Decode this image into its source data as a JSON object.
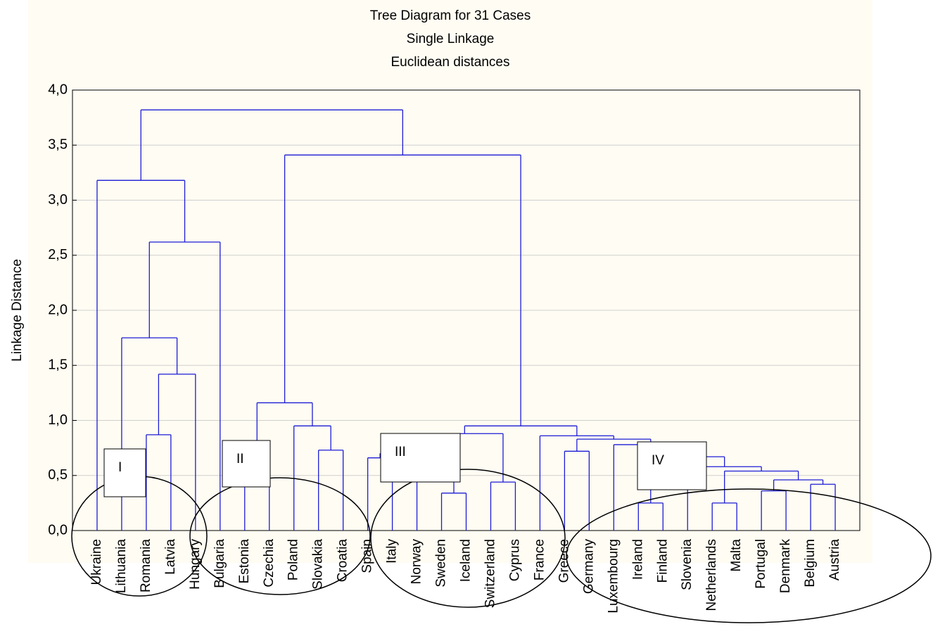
{
  "chart_data": {
    "type": "dendrogram",
    "title": "Tree Diagram for 31 Cases",
    "subtitle": [
      "Single Linkage",
      "Euclidean distances"
    ],
    "y_label": "Linkage Distance",
    "ylim": [
      0,
      4
    ],
    "yticks": [
      {
        "value": 0,
        "label": "0,0"
      },
      {
        "value": 0.5,
        "label": "0,5"
      },
      {
        "value": 1,
        "label": "1,0"
      },
      {
        "value": 1.5,
        "label": "1,5"
      },
      {
        "value": 2,
        "label": "2,0"
      },
      {
        "value": 2.5,
        "label": "2,5"
      },
      {
        "value": 3,
        "label": "3,0"
      },
      {
        "value": 3.5,
        "label": "3,5"
      },
      {
        "value": 4,
        "label": "4,0"
      }
    ],
    "grid": true,
    "color": "#1c1cd6",
    "tree": {
      "height": 3.82,
      "children": [
        {
          "height": 3.18,
          "children": [
            "Ukraine",
            {
              "height": 2.62,
              "children": [
                {
                  "height": 1.75,
                  "children": [
                    "Lithuania",
                    {
                      "height": 1.42,
                      "children": [
                        {
                          "height": 0.87,
                          "children": [
                            "Romania",
                            "Latvia"
                          ]
                        },
                        "Hungary"
                      ]
                    }
                  ]
                },
                "Bulgaria"
              ]
            }
          ]
        },
        {
          "height": 3.41,
          "children": [
            {
              "height": 1.16,
              "children": [
                {
                  "height": 0.81,
                  "children": [
                    "Estonia",
                    "Czechia"
                  ]
                },
                {
                  "height": 0.95,
                  "children": [
                    "Poland",
                    {
                      "height": 0.73,
                      "children": [
                        "Slovakia",
                        "Croatia"
                      ]
                    }
                  ]
                }
              ]
            },
            {
              "height": 0.95,
              "children": [
                {
                  "height": 0.88,
                  "children": [
                    {
                      "height": 0.76,
                      "children": [
                        {
                          "height": 0.7,
                          "children": [
                            {
                              "height": 0.66,
                              "children": [
                                "Spain",
                                "Italy"
                              ]
                            },
                            "Norway"
                          ]
                        },
                        {
                          "height": 0.34,
                          "children": [
                            "Sweden",
                            "Iceland"
                          ]
                        }
                      ]
                    },
                    {
                      "height": 0.44,
                      "children": [
                        "Switzerland",
                        "Cyprus"
                      ]
                    }
                  ]
                },
                {
                  "height": 0.86,
                  "children": [
                    "France",
                    {
                      "height": 0.83,
                      "children": [
                        {
                          "height": 0.72,
                          "children": [
                            "Greece",
                            "Germany"
                          ]
                        },
                        {
                          "height": 0.78,
                          "children": [
                            "Luxembourg",
                            {
                              "height": 0.67,
                              "children": [
                                {
                                  "height": 0.25,
                                  "children": [
                                    "Ireland",
                                    "Finland"
                                  ]
                                },
                                {
                                  "height": 0.58,
                                  "children": [
                                    "Slovenia",
                                    {
                                      "height": 0.54,
                                      "children": [
                                        {
                                          "height": 0.25,
                                          "children": [
                                            "Netherlands",
                                            "Malta"
                                          ]
                                        },
                                        {
                                          "height": 0.46,
                                          "children": [
                                            {
                                              "height": 0.36,
                                              "children": [
                                                "Portugal",
                                                "Denmark"
                                              ]
                                            },
                                            {
                                              "height": 0.42,
                                              "children": [
                                                "Belgium",
                                                "Austria"
                                              ]
                                            }
                                          ]
                                        }
                                      ]
                                    }
                                  ]
                                }
                              ]
                            }
                          ]
                        }
                      ]
                    }
                  ]
                }
              ]
            }
          ]
        }
      ]
    },
    "annotations": [
      "I",
      "II",
      "III",
      "IV"
    ]
  }
}
